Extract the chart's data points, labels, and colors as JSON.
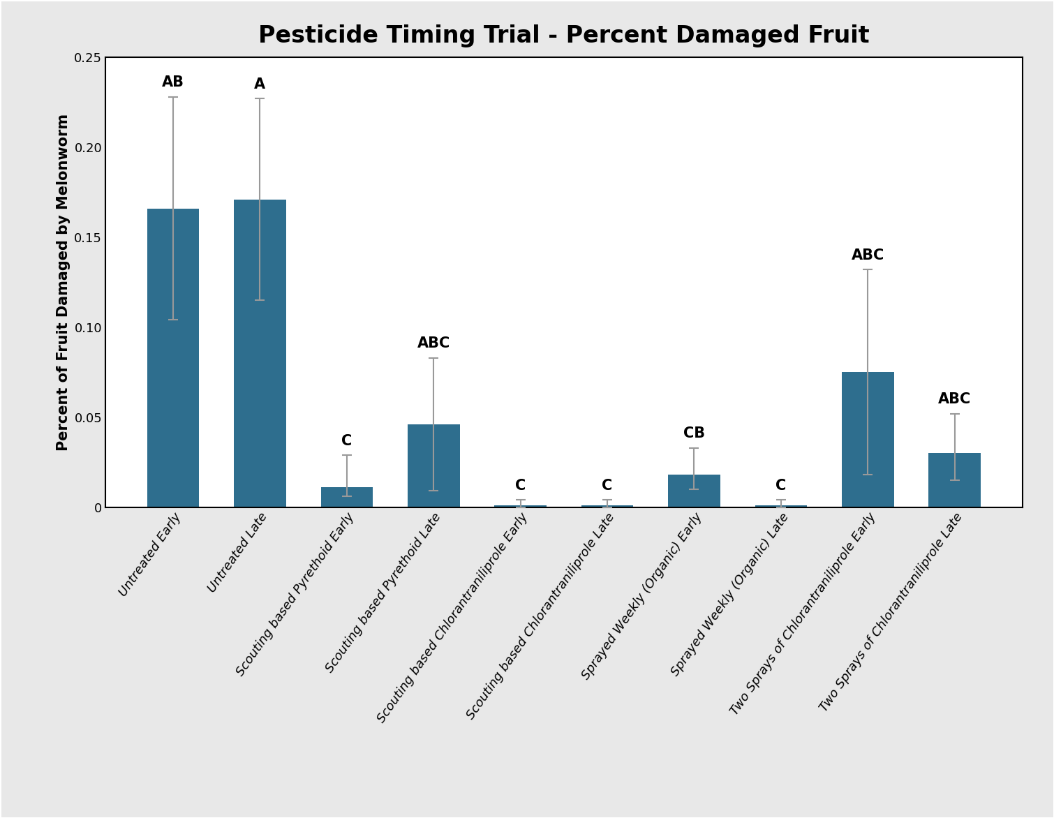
{
  "title": "Pesticide Timing Trial - Percent Damaged Fruit",
  "ylabel": "Percent of Fruit Damaged by Melonworm",
  "categories": [
    "Untreated Early",
    "Untreated Late",
    "Scouting based Pyrethoid Early",
    "Scouting based Pyrethoid Late",
    "Scouting based Chlorantraniliprole Early",
    "Scouting based Chlorantraniliprole Late",
    "Sprayed Weekly (Organic) Early",
    "Sprayed Weekly (Organic) Late",
    "Two Sprays of Chlorantraniliprole Early",
    "Two Sprays of Chlorantraniliprole Late"
  ],
  "values": [
    0.166,
    0.171,
    0.011,
    0.046,
    0.001,
    0.001,
    0.018,
    0.001,
    0.075,
    0.03
  ],
  "errors_upper": [
    0.062,
    0.056,
    0.018,
    0.037,
    0.003,
    0.003,
    0.015,
    0.003,
    0.057,
    0.022
  ],
  "errors_lower": [
    0.062,
    0.056,
    0.005,
    0.037,
    0.001,
    0.001,
    0.008,
    0.001,
    0.057,
    0.015
  ],
  "labels": [
    "AB",
    "A",
    "C",
    "ABC",
    "C",
    "C",
    "CB",
    "C",
    "ABC",
    "ABC"
  ],
  "bar_color": "#2E6E8E",
  "error_color": "#999999",
  "ylim": [
    0,
    0.25
  ],
  "yticks": [
    0,
    0.05,
    0.1,
    0.15,
    0.2,
    0.25
  ],
  "title_fontsize": 24,
  "label_fontsize": 15,
  "tick_fontsize": 13,
  "annot_fontsize": 15,
  "plot_bg_color": "#ffffff",
  "fig_bg_color": "#e8e8e8",
  "figsize": [
    15.1,
    11.72
  ],
  "dpi": 100
}
